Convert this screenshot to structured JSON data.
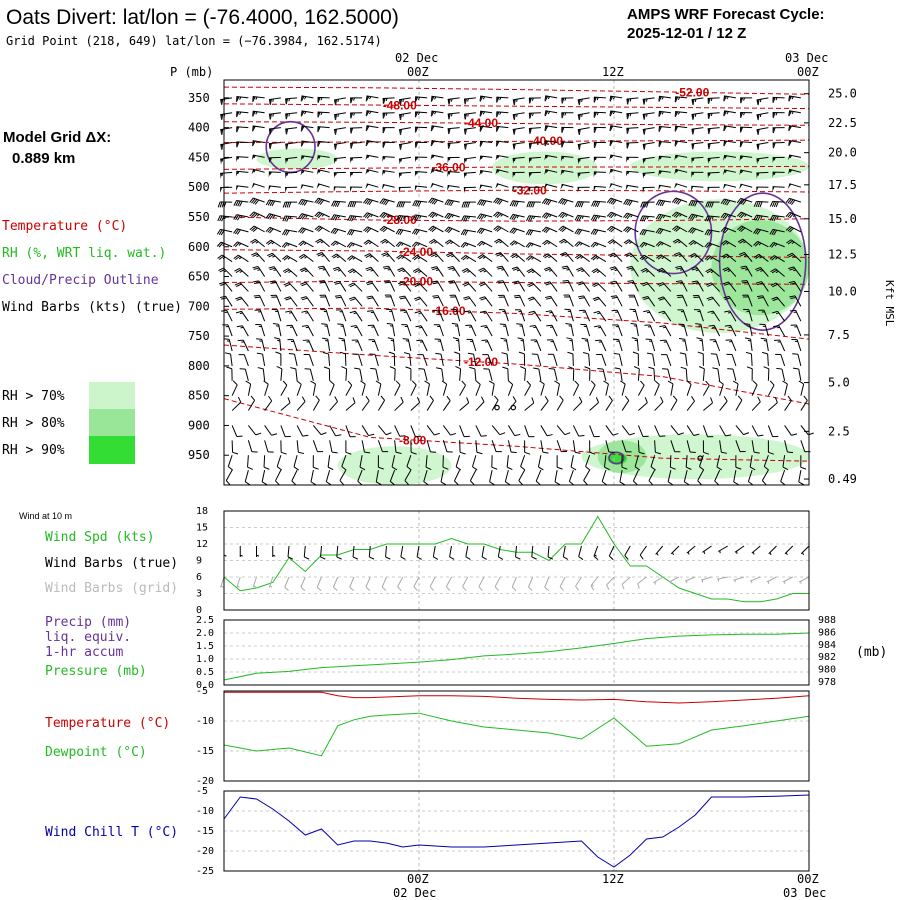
{
  "header": {
    "title": "Oats Divert:  lat/lon = (-76.4000, 162.5000)",
    "grid_point": "Grid Point (218, 649) lat/lon = (−76.3984, 162.5174)",
    "cycle_line1": "AMPS WRF Forecast Cycle:",
    "cycle_line2": "2025-12-01 / 12  Z"
  },
  "legend": {
    "model_grid_label": "Model Grid ΔX:",
    "model_grid_value": "0.889 km",
    "temperature": "Temperature (°C)",
    "rh": "RH (%, WRT liq. wat.)",
    "cloud": "Cloud/Precip Outline",
    "wind": "Wind Barbs (kts) (true)",
    "rh70": "RH > 70%",
    "rh80": "RH > 80%",
    "rh90": "RH > 90%"
  },
  "colors": {
    "temperature": "#cc0000",
    "rh70": "#ccf5cc",
    "rh80": "#99e699",
    "rh90": "#33dd33",
    "cloud": "#663399",
    "wind_spd": "#22bb22",
    "pressure": "#22bb22",
    "sfc_temp": "#cc0000",
    "dewpoint": "#22bb22",
    "wind_chill": "#0000aa",
    "precip": "#663399"
  },
  "chart_data": [
    {
      "id": "profile",
      "type": "contour",
      "time_labels_top": [
        {
          "t": 0,
          "line1": "",
          "line2": "P (mb)"
        },
        {
          "t": 12,
          "line1": "02 Dec",
          "line2": "00Z"
        },
        {
          "t": 24,
          "line1": "",
          "line2": "12Z"
        },
        {
          "t": 36,
          "line1": "03 Dec",
          "line2": "00Z"
        }
      ],
      "x_range_hours": [
        0,
        36
      ],
      "y_range_mb": [
        1000,
        300
      ],
      "pressure_ticks": [
        "350",
        "400",
        "450",
        "500",
        "550",
        "600",
        "650",
        "700",
        "750",
        "800",
        "850",
        "900",
        "950"
      ],
      "height_ticks": [
        {
          "label": "25.0",
          "p": 343
        },
        {
          "label": "22.5",
          "p": 392
        },
        {
          "label": "20.0",
          "p": 442
        },
        {
          "label": "17.5",
          "p": 496
        },
        {
          "label": "15.0",
          "p": 553
        },
        {
          "label": "12.5",
          "p": 613
        },
        {
          "label": "10.0",
          "p": 675
        },
        {
          "label": "7.5",
          "p": 748
        },
        {
          "label": "5.0",
          "p": 828
        },
        {
          "label": "2.5",
          "p": 910
        },
        {
          "label": "0.49",
          "p": 990
        }
      ],
      "height_axis_label": "Kft MSL",
      "isotherms": [
        {
          "label": "-52.00",
          "t": 29,
          "p": [
            332,
            333,
            336,
            340,
            344
          ]
        },
        {
          "label": "-48.00",
          "t": 11,
          "p": [
            360,
            362,
            364,
            366,
            368
          ]
        },
        {
          "label": "-44.00",
          "t": 16,
          "p": [
            390,
            391,
            393,
            395,
            396
          ]
        },
        {
          "label": "-40.00",
          "t": 20,
          "p": [
            425,
            424,
            423,
            422,
            421
          ]
        },
        {
          "label": "-36.00",
          "t": 14,
          "p": [
            470,
            468,
            466,
            466,
            465
          ]
        },
        {
          "label": "-32.00",
          "t": 19,
          "p": [
            510,
            507,
            505,
            506,
            508
          ]
        },
        {
          "label": "-28.00",
          "t": 11,
          "p": [
            550,
            555,
            557,
            556,
            553
          ]
        },
        {
          "label": "-24.00",
          "t": 12,
          "p": [
            605,
            607,
            612,
            615,
            618
          ]
        },
        {
          "label": "-20.00",
          "t": 12,
          "p": [
            660,
            658,
            660,
            662,
            663
          ]
        },
        {
          "label": "-16.00",
          "t": 14,
          "p": [
            705,
            703,
            712,
            728,
            755
          ]
        },
        {
          "label": "-12.00",
          "t": 16,
          "p": [
            765,
            782,
            797,
            818,
            864
          ]
        },
        {
          "label": "-8.00",
          "t": 12,
          "p": [
            855,
            920,
            935,
            955,
            960
          ]
        }
      ],
      "rh_regions": [
        {
          "level": 70,
          "t0": 2,
          "t1": 7,
          "p0": 470,
          "p1": 435
        },
        {
          "level": 70,
          "t0": 16.5,
          "t1": 23,
          "p0": 495,
          "p1": 440
        },
        {
          "level": 70,
          "t0": 25,
          "t1": 36,
          "p0": 490,
          "p1": 440
        },
        {
          "level": 70,
          "t0": 25,
          "t1": 36,
          "p0": 745,
          "p1": 520
        },
        {
          "level": 80,
          "t0": 30,
          "t1": 36,
          "p0": 715,
          "p1": 555
        },
        {
          "level": 70,
          "t0": 7,
          "t1": 14,
          "p0": 1000,
          "p1": 935
        },
        {
          "level": 70,
          "t0": 22,
          "t1": 36,
          "p0": 990,
          "p1": 915
        },
        {
          "level": 80,
          "t0": 23,
          "t1": 26,
          "p0": 980,
          "p1": 925
        },
        {
          "level": 90,
          "t0": 23.6,
          "t1": 24.8,
          "p0": 966,
          "p1": 945
        }
      ],
      "cloud_outlines": [
        {
          "t0": 2.6,
          "t1": 5.6,
          "p0": 475,
          "p1": 390
        },
        {
          "t0": 25.3,
          "t1": 30,
          "p0": 645,
          "p1": 507
        },
        {
          "t0": 30.5,
          "t1": 35.8,
          "p0": 740,
          "p1": 510
        },
        {
          "t0": 23.7,
          "t1": 24.6,
          "p0": 964,
          "p1": 945
        }
      ],
      "barb_layers": [
        {
          "p": 350,
          "dir": 270,
          "spd": 65
        },
        {
          "p": 375,
          "dir": 270,
          "spd": 65
        },
        {
          "p": 400,
          "dir": 270,
          "spd": 60
        },
        {
          "p": 425,
          "dir": 270,
          "spd": 60
        },
        {
          "p": 450,
          "dir": 272,
          "spd": 55
        },
        {
          "p": 475,
          "dir": 275,
          "spd": 55
        },
        {
          "p": 500,
          "dir": 278,
          "spd": 50
        },
        {
          "p": 525,
          "dir": 280,
          "spd": 40
        },
        {
          "p": 550,
          "dir": 285,
          "spd": 35
        },
        {
          "p": 575,
          "dir": 290,
          "spd": 30
        },
        {
          "p": 600,
          "dir": 300,
          "spd": 25
        },
        {
          "p": 625,
          "dir": 310,
          "spd": 25
        },
        {
          "p": 650,
          "dir": 320,
          "spd": 25
        },
        {
          "p": 675,
          "dir": 325,
          "spd": 20
        },
        {
          "p": 700,
          "dir": 330,
          "spd": 20
        },
        {
          "p": 725,
          "dir": 335,
          "spd": 15
        },
        {
          "p": 750,
          "dir": 340,
          "spd": 15
        },
        {
          "p": 775,
          "dir": 345,
          "spd": 15
        },
        {
          "p": 800,
          "dir": 350,
          "spd": 10
        },
        {
          "p": 825,
          "dir": 355,
          "spd": 10
        },
        {
          "p": 850,
          "dir": 20,
          "spd": 10
        },
        {
          "p": 875,
          "dir": 40,
          "spd": 10
        },
        {
          "p": 900,
          "dir": 150,
          "spd": 10
        },
        {
          "p": 925,
          "dir": 170,
          "spd": 10
        },
        {
          "p": 950,
          "dir": 190,
          "spd": 10
        },
        {
          "p": 975,
          "dir": 200,
          "spd": 10
        }
      ],
      "calm_points": [
        {
          "t": 16.8,
          "p": 870
        },
        {
          "t": 17.8,
          "p": 870
        },
        {
          "t": 29.3,
          "p": 955
        }
      ]
    },
    {
      "id": "wind10m",
      "type": "line",
      "labels": {
        "header": "Wind at 10 m",
        "spd": "Wind Spd (kts)",
        "barbs_true": "Wind Barbs (true)",
        "barbs_grid": "Wind Barbs (grid)"
      },
      "yticks": [
        "18",
        "15",
        "12",
        "9",
        "6",
        "3",
        "0"
      ],
      "ylim": [
        0,
        18
      ],
      "x_hours": [
        0,
        1,
        2,
        3,
        4,
        5,
        6,
        7,
        8,
        9,
        10,
        11,
        12,
        13,
        14,
        15,
        16,
        17,
        18,
        19,
        20,
        21,
        22,
        23,
        24,
        25,
        26,
        27,
        28,
        29,
        30,
        31,
        32,
        33,
        34,
        35,
        36
      ],
      "speed": [
        6,
        3.5,
        4,
        5,
        9.5,
        7,
        10,
        10,
        11,
        11,
        12,
        12,
        12,
        12,
        13,
        12,
        12,
        11,
        10.5,
        10.5,
        9,
        12,
        12,
        17,
        12,
        8,
        8,
        6,
        4,
        3,
        2,
        2,
        1.5,
        1.5,
        2,
        3,
        3
      ],
      "barb_dir": [
        180,
        180,
        180,
        180,
        185,
        185,
        185,
        185,
        185,
        185,
        185,
        190,
        190,
        190,
        190,
        190,
        190,
        190,
        185,
        185,
        185,
        190,
        195,
        200,
        205,
        210,
        215,
        220,
        225,
        230,
        235,
        240,
        235,
        230,
        225,
        225,
        225
      ],
      "barb_spd": [
        6,
        5,
        5,
        5,
        10,
        10,
        10,
        10,
        10,
        10,
        10,
        10,
        10,
        10,
        10,
        10,
        10,
        10,
        10,
        10,
        10,
        10,
        10,
        15,
        10,
        10,
        10,
        5,
        5,
        5,
        5,
        5,
        5,
        5,
        5,
        5,
        5
      ]
    },
    {
      "id": "pressure",
      "type": "line",
      "labels": {
        "precip": "Precip (mm)",
        "liq": "liq. equiv.",
        "accum": "1-hr accum",
        "pressure": "Pressure (mb)",
        "unit": "(mb)"
      },
      "precip_yticks": [
        "2.5",
        "2.0",
        "1.5",
        "1.0",
        "0.5",
        "0.0"
      ],
      "precip_ylim": [
        0,
        2.5
      ],
      "pressure_yticks": [
        "988",
        "986",
        "984",
        "982",
        "980",
        "978"
      ],
      "pressure_ylim": [
        977.5,
        988
      ],
      "x_hours": [
        0,
        2,
        4,
        6,
        8,
        10,
        12,
        14,
        16,
        18,
        20,
        22,
        24,
        26,
        28,
        30,
        32,
        34,
        36
      ],
      "pressure": [
        978.3,
        979.4,
        979.7,
        980.3,
        980.6,
        980.9,
        981.2,
        981.6,
        982.2,
        982.5,
        982.9,
        983.5,
        984.2,
        985.0,
        985.4,
        985.6,
        985.7,
        985.7,
        985.9
      ],
      "precip": [
        0,
        0,
        0,
        0,
        0,
        0,
        0,
        0,
        0,
        0,
        0,
        0,
        0,
        0,
        0,
        0,
        0,
        0,
        0
      ]
    },
    {
      "id": "temperature",
      "type": "line",
      "labels": {
        "temp": "Temperature (°C)",
        "dew": "Dewpoint (°C)"
      },
      "yticks": [
        "-5",
        "-10",
        "-15",
        "-20"
      ],
      "ylim": [
        -20,
        -5
      ],
      "x_hours": [
        0,
        2,
        4,
        6,
        7,
        8,
        9,
        10,
        12,
        14,
        16,
        18,
        20,
        22,
        24,
        26,
        28,
        30,
        32,
        34,
        36
      ],
      "temp": [
        -5.2,
        -5.2,
        -5.2,
        -5.2,
        -5.8,
        -6.1,
        -6.1,
        -6.0,
        -5.8,
        -5.8,
        -5.9,
        -6.2,
        -6.4,
        -6.5,
        -6.4,
        -6.8,
        -7.0,
        -6.8,
        -6.5,
        -6.2,
        -5.8
      ],
      "dew": [
        -14,
        -15,
        -14.5,
        -15.8,
        -10.8,
        -9.8,
        -9.2,
        -9.0,
        -8.7,
        -10,
        -11,
        -11.5,
        -12.0,
        -13.0,
        -9.5,
        -14.2,
        -13.8,
        -11.5,
        -10.8,
        -10.0,
        -9.2
      ]
    },
    {
      "id": "windchill",
      "type": "line",
      "labels": {
        "wc": "Wind Chill T (°C)"
      },
      "yticks": [
        "-5",
        "-10",
        "-15",
        "-20",
        "-25"
      ],
      "ylim": [
        -25,
        -5
      ],
      "x_hours": [
        0,
        1,
        2,
        3,
        4,
        5,
        6,
        7,
        8,
        9,
        10,
        11,
        12,
        14,
        16,
        18,
        20,
        22,
        23,
        24,
        25,
        26,
        27,
        28,
        29,
        30,
        32,
        34,
        36
      ],
      "wc": [
        -12,
        -6.5,
        -7,
        -9.5,
        -12.5,
        -16,
        -14.5,
        -18.5,
        -17.5,
        -17.5,
        -18,
        -19,
        -18.5,
        -19,
        -19,
        -18.5,
        -18,
        -17.5,
        -21.5,
        -24,
        -21,
        -17,
        -16.5,
        -14,
        -11,
        -6.5,
        -6.5,
        -6.3,
        -6
      ]
    }
  ],
  "bottom_axis": {
    "labels": [
      {
        "t": 12,
        "line1": "00Z",
        "line2": "02 Dec"
      },
      {
        "t": 24,
        "line1": "12Z",
        "line2": ""
      },
      {
        "t": 36,
        "line1": "00Z",
        "line2": "03 Dec"
      }
    ]
  }
}
